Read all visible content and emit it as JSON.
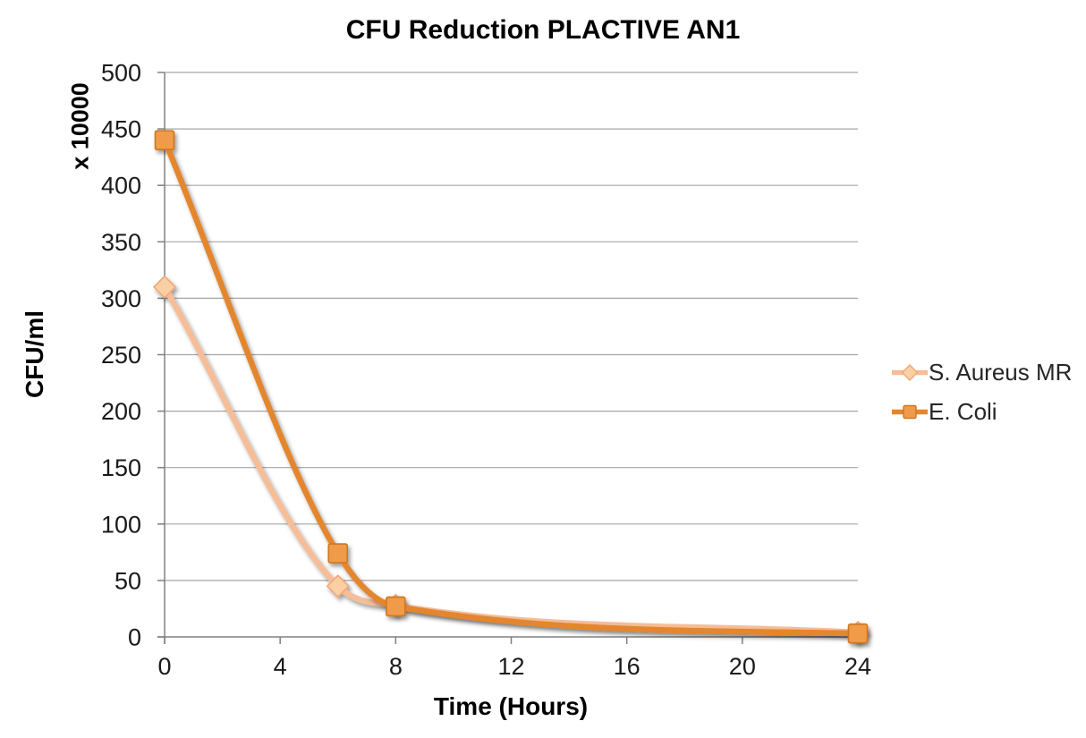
{
  "chart_data": {
    "type": "line",
    "title": "CFU Reduction PLACTIVE AN1",
    "xlabel": "Time (Hours)",
    "ylabel": "CFU/ml",
    "y_unit_label": "x 10000",
    "x": [
      0,
      6,
      8,
      24
    ],
    "series": [
      {
        "name": "S. Aureus MR",
        "values": [
          310,
          45,
          28,
          4
        ],
        "marker": "diamond",
        "line_color": "#F6BD97",
        "marker_fill": "#FBCFA4",
        "marker_stroke": "#F1A878"
      },
      {
        "name": "E. Coli",
        "values": [
          440,
          74,
          27,
          3
        ],
        "marker": "square",
        "line_color": "#E3862F",
        "marker_fill": "#F09B4A",
        "marker_stroke": "#D0761F"
      }
    ],
    "x_ticks": [
      0,
      4,
      8,
      12,
      16,
      20,
      24
    ],
    "y_ticks": [
      0,
      50,
      100,
      150,
      200,
      250,
      300,
      350,
      400,
      450,
      500
    ],
    "xlim": [
      0,
      24
    ],
    "ylim": [
      0,
      500
    ],
    "grid": "horizontal",
    "smooth": true,
    "legend_position": "right"
  },
  "colors": {
    "gridline": "#A6A6A6",
    "axis": "#808080",
    "tick_text": "#1A1A1A",
    "title_text": "#000000",
    "legend_text": "#262626",
    "background": "#FFFFFF"
  }
}
